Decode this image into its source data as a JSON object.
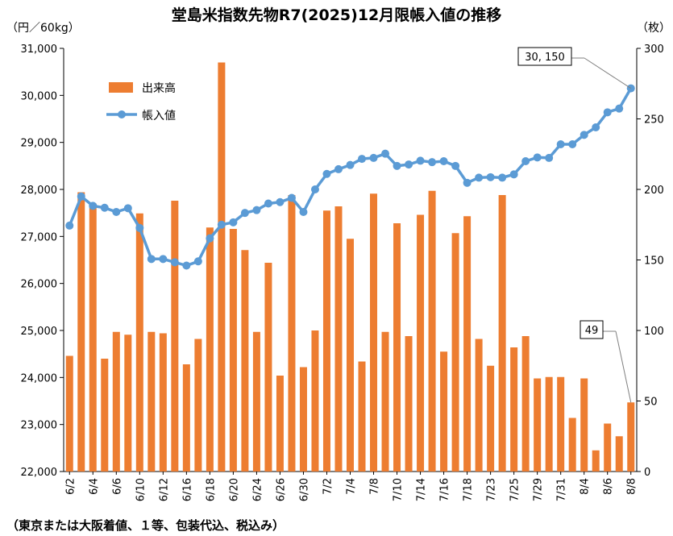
{
  "title": "堂島米指数先物R7(2025)12月限帳入値の推移",
  "y_left_unit": "（円／60kg）",
  "y_right_unit": "（枚）",
  "footnote": "（東京または大阪着値、１等、包装代込、税込み）",
  "chart_data": {
    "type": "bar+line",
    "categories": [
      "6/2",
      "6/3",
      "6/4",
      "6/5",
      "6/6",
      "6/9",
      "6/10",
      "6/11",
      "6/12",
      "6/13",
      "6/16",
      "6/17",
      "6/18",
      "6/19",
      "6/20",
      "6/23",
      "6/24",
      "6/25",
      "6/26",
      "6/27",
      "6/30",
      "7/1",
      "7/2",
      "7/3",
      "7/4",
      "7/7",
      "7/8",
      "7/9",
      "7/10",
      "7/11",
      "7/14",
      "7/15",
      "7/16",
      "7/17",
      "7/18",
      "7/22",
      "7/23",
      "7/24",
      "7/25",
      "7/28",
      "7/29",
      "7/30",
      "7/31",
      "8/1",
      "8/4",
      "8/5",
      "8/6",
      "8/7",
      "8/8"
    ],
    "x_tick_labels": [
      "6/2",
      "6/4",
      "6/6",
      "6/10",
      "6/12",
      "6/16",
      "6/18",
      "6/20",
      "6/24",
      "6/26",
      "6/30",
      "7/2",
      "7/4",
      "7/8",
      "7/10",
      "7/14",
      "7/16",
      "7/18",
      "7/23",
      "7/25",
      "7/29",
      "7/31",
      "8/4",
      "8/6",
      "8/8"
    ],
    "series": [
      {
        "name": "出来高",
        "type": "bar",
        "axis": "right",
        "color": "#ED7D31",
        "values": [
          82,
          198,
          190,
          80,
          99,
          97,
          183,
          99,
          98,
          192,
          76,
          94,
          173,
          290,
          172,
          157,
          99,
          148,
          68,
          196,
          74,
          100,
          185,
          188,
          165,
          78,
          197,
          99,
          176,
          96,
          182,
          199,
          85,
          169,
          181,
          94,
          75,
          196,
          88,
          96,
          66,
          67,
          67,
          38,
          66,
          15,
          34,
          25,
          49
        ]
      },
      {
        "name": "帳入値",
        "type": "line",
        "axis": "left",
        "color": "#5B9BD5",
        "values": [
          27230,
          27850,
          27650,
          27610,
          27520,
          27600,
          27180,
          26520,
          26520,
          26450,
          26380,
          26470,
          26960,
          27250,
          27300,
          27500,
          27560,
          27700,
          27730,
          27820,
          27520,
          28000,
          28330,
          28430,
          28520,
          28650,
          28670,
          28760,
          28500,
          28530,
          28610,
          28580,
          28600,
          28500,
          28140,
          28250,
          28260,
          28250,
          28320,
          28600,
          28680,
          28670,
          28960,
          28960,
          29160,
          29320,
          29640,
          29720,
          30150
        ]
      }
    ],
    "y_left": {
      "min": 22000,
      "max": 31000,
      "ticks": [
        "22,000",
        "23,000",
        "24,000",
        "25,000",
        "26,000",
        "27,000",
        "28,000",
        "29,000",
        "30,000",
        "31,000"
      ]
    },
    "y_right": {
      "min": 0,
      "max": 300,
      "ticks": [
        "0",
        "50",
        "100",
        "150",
        "200",
        "250",
        "300"
      ]
    },
    "annotations": [
      {
        "text": "30, 150",
        "target_series": "帳入値",
        "target_index": 48
      },
      {
        "text": "49",
        "target_series": "出来高",
        "target_index": 48
      }
    ],
    "legend": {
      "placement": "upper-left",
      "entries": [
        "出来高",
        "帳入値"
      ]
    },
    "grid": false
  }
}
